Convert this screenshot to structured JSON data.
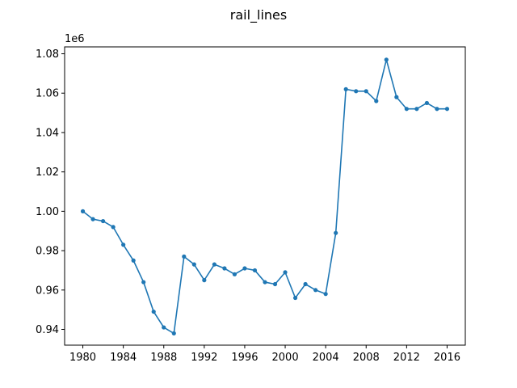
{
  "chart_data": {
    "type": "line",
    "title": "rail_lines",
    "xlabel": "",
    "ylabel": "",
    "y_offset_label": "1e6",
    "xlim": [
      1978.2,
      2017.8
    ],
    "ylim": [
      0.932,
      1.0835
    ],
    "x_ticks": [
      1980,
      1984,
      1988,
      1992,
      1996,
      2000,
      2004,
      2008,
      2012,
      2016
    ],
    "y_ticks": [
      0.94,
      0.96,
      0.98,
      1.0,
      1.02,
      1.04,
      1.06,
      1.08
    ],
    "y_tick_labels": [
      "0.94",
      "0.96",
      "0.98",
      "1.00",
      "1.02",
      "1.04",
      "1.06",
      "1.08"
    ],
    "grid": false,
    "legend": "none",
    "series": [
      {
        "color": "#1f77b4",
        "marker": "circle",
        "x": [
          1980,
          1981,
          1982,
          1983,
          1984,
          1985,
          1986,
          1987,
          1988,
          1989,
          1990,
          1991,
          1992,
          1993,
          1994,
          1995,
          1996,
          1997,
          1998,
          1999,
          2000,
          2001,
          2002,
          2003,
          2004,
          2005,
          2006,
          2007,
          2008,
          2009,
          2010,
          2011,
          2012,
          2013,
          2014,
          2015,
          2016
        ],
        "y": [
          1.0,
          0.996,
          0.995,
          0.992,
          0.983,
          0.975,
          0.964,
          0.949,
          0.941,
          0.938,
          0.977,
          0.973,
          0.965,
          0.973,
          0.971,
          0.968,
          0.971,
          0.97,
          0.964,
          0.963,
          0.969,
          0.956,
          0.963,
          0.96,
          0.958,
          0.989,
          1.062,
          1.061,
          1.061,
          1.056,
          1.077,
          1.058,
          1.052,
          1.052,
          1.055,
          1.052,
          1.052
        ]
      }
    ]
  }
}
